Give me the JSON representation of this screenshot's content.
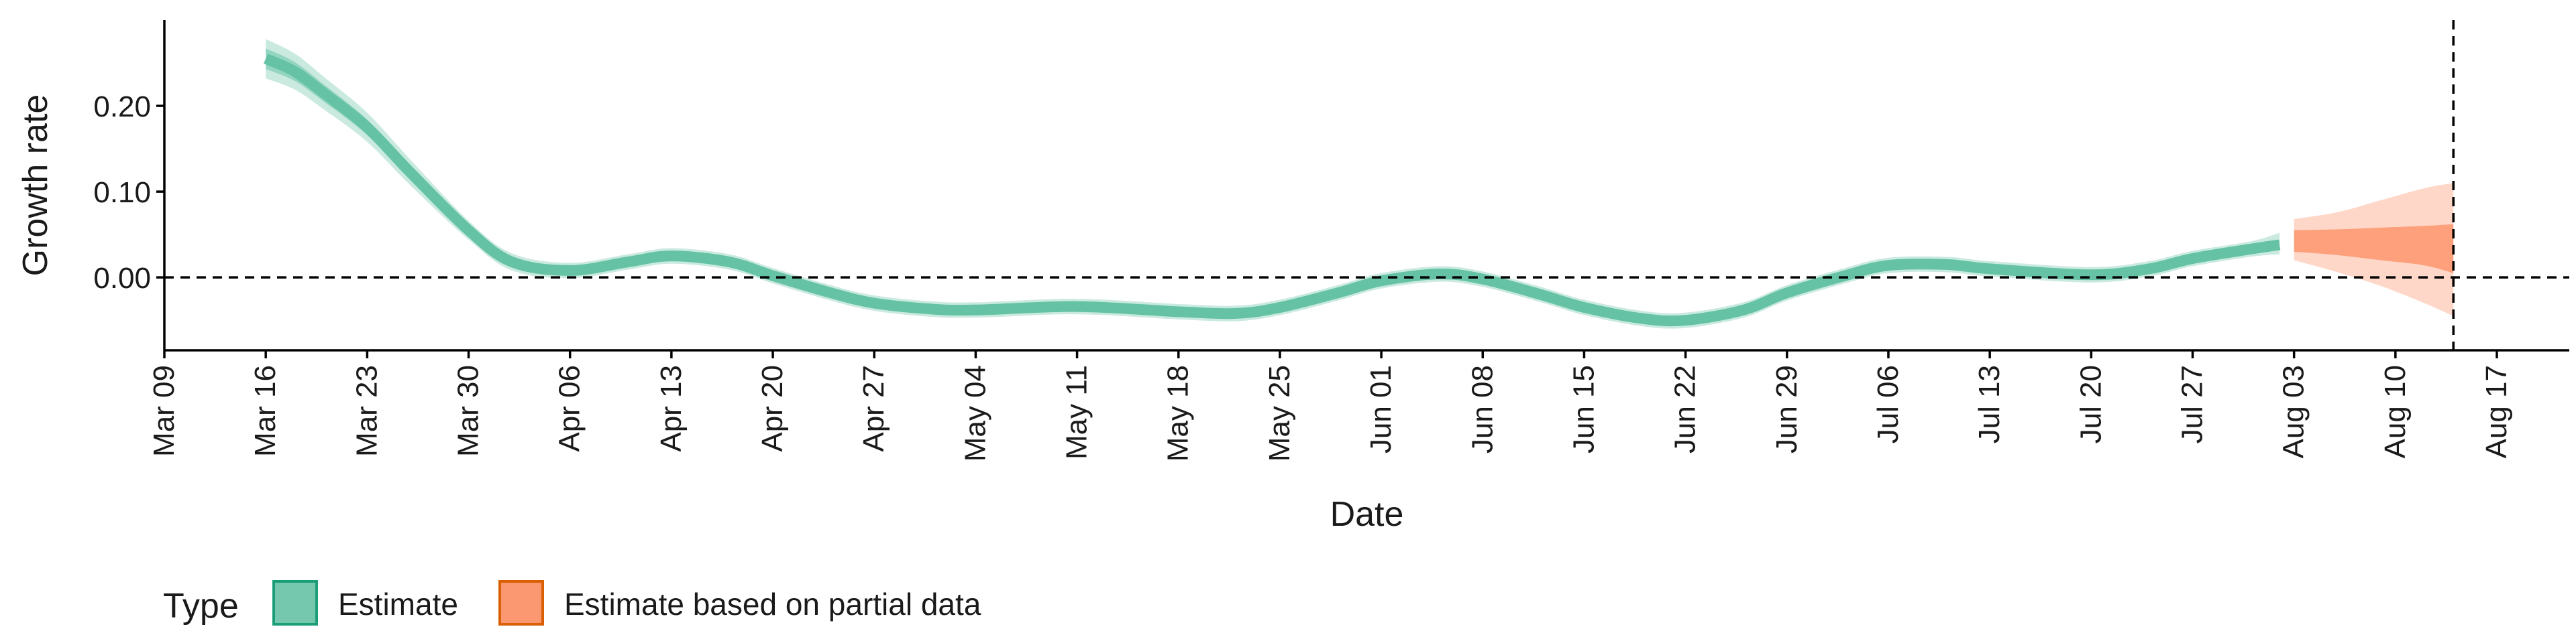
{
  "chart_data": {
    "type": "line",
    "xlabel": "Date",
    "ylabel": "Growth rate",
    "x_ticks": [
      "2020-03-09",
      "2020-03-16",
      "2020-03-23",
      "2020-03-30",
      "2020-04-06",
      "2020-04-13",
      "2020-04-20",
      "2020-04-27",
      "2020-05-04",
      "2020-05-11",
      "2020-05-18",
      "2020-05-25",
      "2020-06-01",
      "2020-06-08",
      "2020-06-15",
      "2020-06-22",
      "2020-06-29",
      "2020-07-06",
      "2020-07-13",
      "2020-07-20",
      "2020-07-27",
      "2020-08-03",
      "2020-08-10",
      "2020-08-17"
    ],
    "x_tick_labels": [
      "Mar 09",
      "Mar 16",
      "Mar 23",
      "Mar 30",
      "Apr 06",
      "Apr 13",
      "Apr 20",
      "Apr 27",
      "May 04",
      "May 11",
      "May 18",
      "May 25",
      "Jun 01",
      "Jun 08",
      "Jun 15",
      "Jun 22",
      "Jun 29",
      "Jul 06",
      "Jul 13",
      "Jul 20",
      "Jul 27",
      "Aug 03",
      "Aug 10",
      "Aug 17"
    ],
    "xlim": [
      "2020-03-09",
      "2020-08-22"
    ],
    "y_ticks": [
      0.0,
      0.1,
      0.2
    ],
    "y_tick_labels": [
      "0.00",
      "0.10",
      "0.20"
    ],
    "ylim": [
      -0.085,
      0.3
    ],
    "hline_y": 0.0,
    "vline_date": "2020-08-14",
    "legend": {
      "title": "Type",
      "position": "bottom-left"
    },
    "series": [
      {
        "name": "Estimate",
        "color": "#66c2a5",
        "points": [
          {
            "date": "2020-03-16",
            "y": 0.255,
            "lo50": 0.243,
            "hi50": 0.267,
            "lo90": 0.232,
            "hi90": 0.278
          },
          {
            "date": "2020-03-18",
            "y": 0.24,
            "lo50": 0.229,
            "hi50": 0.251,
            "lo90": 0.219,
            "hi90": 0.261
          },
          {
            "date": "2020-03-20",
            "y": 0.215,
            "lo50": 0.205,
            "hi50": 0.225,
            "lo90": 0.196,
            "hi90": 0.234
          },
          {
            "date": "2020-03-23",
            "y": 0.175,
            "lo50": 0.166,
            "hi50": 0.184,
            "lo90": 0.158,
            "hi90": 0.192
          },
          {
            "date": "2020-03-26",
            "y": 0.122,
            "lo50": 0.114,
            "hi50": 0.13,
            "lo90": 0.107,
            "hi90": 0.137
          },
          {
            "date": "2020-03-30",
            "y": 0.055,
            "lo50": 0.049,
            "hi50": 0.061,
            "lo90": 0.044,
            "hi90": 0.066
          },
          {
            "date": "2020-04-02",
            "y": 0.018,
            "lo50": 0.013,
            "hi50": 0.023,
            "lo90": 0.008,
            "hi90": 0.028
          },
          {
            "date": "2020-04-06",
            "y": 0.008,
            "lo50": 0.004,
            "hi50": 0.012,
            "lo90": -0.001,
            "hi90": 0.017
          },
          {
            "date": "2020-04-10",
            "y": 0.018,
            "lo50": 0.014,
            "hi50": 0.022,
            "lo90": 0.009,
            "hi90": 0.027
          },
          {
            "date": "2020-04-13",
            "y": 0.025,
            "lo50": 0.021,
            "hi50": 0.029,
            "lo90": 0.016,
            "hi90": 0.034
          },
          {
            "date": "2020-04-17",
            "y": 0.018,
            "lo50": 0.014,
            "hi50": 0.022,
            "lo90": 0.009,
            "hi90": 0.027
          },
          {
            "date": "2020-04-20",
            "y": 0.002,
            "lo50": -0.002,
            "hi50": 0.006,
            "lo90": -0.007,
            "hi90": 0.011
          },
          {
            "date": "2020-04-24",
            "y": -0.018,
            "lo50": -0.022,
            "hi50": -0.014,
            "lo90": -0.027,
            "hi90": -0.009
          },
          {
            "date": "2020-04-27",
            "y": -0.03,
            "lo50": -0.034,
            "hi50": -0.026,
            "lo90": -0.039,
            "hi90": -0.021
          },
          {
            "date": "2020-05-01",
            "y": -0.037,
            "lo50": -0.041,
            "hi50": -0.033,
            "lo90": -0.046,
            "hi90": -0.028
          },
          {
            "date": "2020-05-04",
            "y": -0.038,
            "lo50": -0.042,
            "hi50": -0.034,
            "lo90": -0.047,
            "hi90": -0.029
          },
          {
            "date": "2020-05-11",
            "y": -0.034,
            "lo50": -0.038,
            "hi50": -0.03,
            "lo90": -0.043,
            "hi90": -0.025
          },
          {
            "date": "2020-05-18",
            "y": -0.04,
            "lo50": -0.044,
            "hi50": -0.036,
            "lo90": -0.049,
            "hi90": -0.031
          },
          {
            "date": "2020-05-22",
            "y": -0.042,
            "lo50": -0.046,
            "hi50": -0.038,
            "lo90": -0.051,
            "hi90": -0.033
          },
          {
            "date": "2020-05-25",
            "y": -0.035,
            "lo50": -0.039,
            "hi50": -0.031,
            "lo90": -0.044,
            "hi90": -0.026
          },
          {
            "date": "2020-05-29",
            "y": -0.018,
            "lo50": -0.022,
            "hi50": -0.014,
            "lo90": -0.027,
            "hi90": -0.009
          },
          {
            "date": "2020-06-01",
            "y": -0.004,
            "lo50": -0.008,
            "hi50": 0.0,
            "lo90": -0.013,
            "hi90": 0.005
          },
          {
            "date": "2020-06-05",
            "y": 0.004,
            "lo50": 0.0,
            "hi50": 0.008,
            "lo90": -0.005,
            "hi90": 0.013
          },
          {
            "date": "2020-06-08",
            "y": -0.002,
            "lo50": -0.006,
            "hi50": 0.002,
            "lo90": -0.011,
            "hi90": 0.007
          },
          {
            "date": "2020-06-12",
            "y": -0.02,
            "lo50": -0.024,
            "hi50": -0.016,
            "lo90": -0.029,
            "hi90": -0.011
          },
          {
            "date": "2020-06-15",
            "y": -0.035,
            "lo50": -0.039,
            "hi50": -0.031,
            "lo90": -0.044,
            "hi90": -0.026
          },
          {
            "date": "2020-06-19",
            "y": -0.048,
            "lo50": -0.052,
            "hi50": -0.044,
            "lo90": -0.057,
            "hi90": -0.039
          },
          {
            "date": "2020-06-22",
            "y": -0.05,
            "lo50": -0.054,
            "hi50": -0.046,
            "lo90": -0.059,
            "hi90": -0.041
          },
          {
            "date": "2020-06-26",
            "y": -0.038,
            "lo50": -0.042,
            "hi50": -0.034,
            "lo90": -0.047,
            "hi90": -0.029
          },
          {
            "date": "2020-06-29",
            "y": -0.018,
            "lo50": -0.022,
            "hi50": -0.014,
            "lo90": -0.027,
            "hi90": -0.009
          },
          {
            "date": "2020-07-03",
            "y": 0.002,
            "lo50": -0.002,
            "hi50": 0.006,
            "lo90": -0.007,
            "hi90": 0.011
          },
          {
            "date": "2020-07-06",
            "y": 0.014,
            "lo50": 0.01,
            "hi50": 0.018,
            "lo90": 0.005,
            "hi90": 0.023
          },
          {
            "date": "2020-07-10",
            "y": 0.015,
            "lo50": 0.011,
            "hi50": 0.019,
            "lo90": 0.006,
            "hi90": 0.024
          },
          {
            "date": "2020-07-13",
            "y": 0.01,
            "lo50": 0.006,
            "hi50": 0.014,
            "lo90": 0.001,
            "hi90": 0.019
          },
          {
            "date": "2020-07-20",
            "y": 0.003,
            "lo50": -0.001,
            "hi50": 0.007,
            "lo90": -0.006,
            "hi90": 0.012
          },
          {
            "date": "2020-07-24",
            "y": 0.01,
            "lo50": 0.006,
            "hi50": 0.014,
            "lo90": 0.001,
            "hi90": 0.019
          },
          {
            "date": "2020-07-27",
            "y": 0.022,
            "lo50": 0.018,
            "hi50": 0.026,
            "lo90": 0.013,
            "hi90": 0.031
          },
          {
            "date": "2020-07-31",
            "y": 0.033,
            "lo50": 0.029,
            "hi50": 0.037,
            "lo90": 0.024,
            "hi90": 0.042
          },
          {
            "date": "2020-08-02",
            "y": 0.038,
            "lo50": 0.033,
            "hi50": 0.043,
            "lo90": 0.027,
            "hi90": 0.052
          }
        ]
      },
      {
        "name": "Estimate based on partial data",
        "color": "#fc8d62",
        "points": [
          {
            "date": "2020-08-03",
            "y": 0.042,
            "lo50": 0.03,
            "hi50": 0.055,
            "lo90": 0.02,
            "hi90": 0.068
          },
          {
            "date": "2020-08-06",
            "y": 0.042,
            "lo50": 0.026,
            "hi50": 0.056,
            "lo90": 0.006,
            "hi90": 0.076
          },
          {
            "date": "2020-08-09",
            "y": 0.04,
            "lo50": 0.02,
            "hi50": 0.058,
            "lo90": -0.01,
            "hi90": 0.09
          },
          {
            "date": "2020-08-12",
            "y": 0.04,
            "lo50": 0.014,
            "hi50": 0.06,
            "lo90": -0.03,
            "hi90": 0.104
          },
          {
            "date": "2020-08-14",
            "y": 0.04,
            "lo50": 0.005,
            "hi50": 0.062,
            "lo90": -0.045,
            "hi90": 0.11
          }
        ]
      }
    ]
  }
}
